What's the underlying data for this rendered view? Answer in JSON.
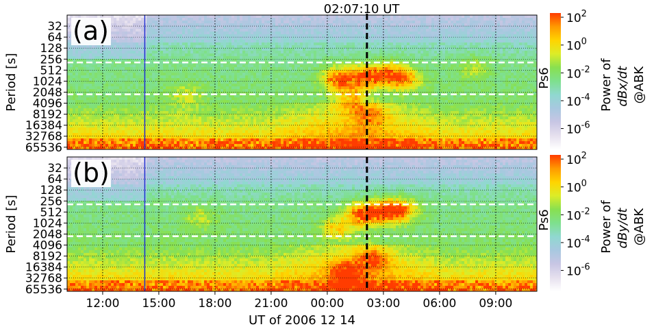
{
  "chart_data": {
    "type": "heatmap",
    "suptitle": "02:07:10 UT",
    "xlabel": "UT of 2006 12 14",
    "x_ticks": [
      "12:00",
      "15:00",
      "18:00",
      "21:00",
      "00:00",
      "03:00",
      "06:00",
      "09:00"
    ],
    "x_tick_hours": [
      12,
      15,
      18,
      21,
      24,
      27,
      30,
      33
    ],
    "x_range_hours": [
      10.1,
      35.2
    ],
    "event_line_hour": 26.12,
    "blue_line_hour": 14.25,
    "ylabel": "Period [s]",
    "y_scale": "log2",
    "y_ticks": [
      "32",
      "64",
      "128",
      "256",
      "512",
      "1024",
      "2048",
      "4096",
      "8192",
      "16384",
      "32768",
      "65536"
    ],
    "y_tick_log2": [
      5,
      6,
      7,
      8,
      9,
      10,
      11,
      12,
      13,
      14,
      15,
      16
    ],
    "y_range_log2": [
      4.0,
      16.2
    ],
    "band_lines_log2": [
      8.3,
      11.2
    ],
    "colorbar_ticks": [
      "10^2",
      "10^0",
      "10^-2",
      "10^-4",
      "10^-6"
    ],
    "colorbar_tick_exp": [
      2,
      0,
      -2,
      -4,
      -6
    ],
    "colorbar_range_exp": [
      -7.5,
      2.3
    ],
    "colorbar_colors": [
      "#ffffff",
      "#e6e0ee",
      "#c8c6e4",
      "#a8c8e0",
      "#90d8d0",
      "#7ee08e",
      "#88e050",
      "#dcec28",
      "#ffd400",
      "#ff9a00",
      "#ff3c00"
    ],
    "panels": [
      {
        "label": "(a)",
        "band_label": "Ps6",
        "cb_label_1": "Power of",
        "cb_label_2": "dBx/dt",
        "cb_label_3": "@ABK",
        "hotspots": [
          {
            "hour": 24.6,
            "period_log2": 9.8,
            "strength": 1.0
          },
          {
            "hour": 26.0,
            "period_log2": 9.6,
            "strength": 1.0
          },
          {
            "hour": 27.3,
            "period_log2": 9.4,
            "strength": 0.85
          },
          {
            "hour": 28.2,
            "period_log2": 9.8,
            "strength": 0.7
          },
          {
            "hour": 25.2,
            "period_log2": 11.6,
            "strength": 0.6
          },
          {
            "hour": 26.3,
            "period_log2": 13.0,
            "strength": 0.5
          },
          {
            "hour": 16.5,
            "period_log2": 11.3,
            "strength": 0.35
          },
          {
            "hour": 31.8,
            "period_log2": 8.8,
            "strength": 0.35
          }
        ]
      },
      {
        "label": "(b)",
        "band_label": "Ps6",
        "cb_label_1": "Power of",
        "cb_label_2": "dBy/dt",
        "cb_label_3": "@ABK",
        "hotspots": [
          {
            "hour": 25.8,
            "period_log2": 9.2,
            "strength": 1.0
          },
          {
            "hour": 27.0,
            "period_log2": 8.9,
            "strength": 0.95
          },
          {
            "hour": 28.0,
            "period_log2": 8.8,
            "strength": 0.85
          },
          {
            "hour": 24.5,
            "period_log2": 10.5,
            "strength": 0.6
          },
          {
            "hour": 26.5,
            "period_log2": 13.2,
            "strength": 0.6
          },
          {
            "hour": 25.0,
            "period_log2": 14.4,
            "strength": 0.55
          },
          {
            "hour": 17.2,
            "period_log2": 9.5,
            "strength": 0.35
          }
        ]
      }
    ]
  }
}
